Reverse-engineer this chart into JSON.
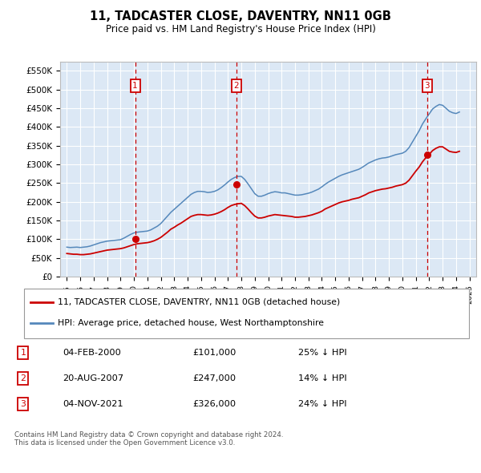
{
  "title": "11, TADCASTER CLOSE, DAVENTRY, NN11 0GB",
  "subtitle": "Price paid vs. HM Land Registry's House Price Index (HPI)",
  "ylim": [
    0,
    575000
  ],
  "yticks": [
    0,
    50000,
    100000,
    150000,
    200000,
    250000,
    300000,
    350000,
    400000,
    450000,
    500000,
    550000
  ],
  "ytick_labels": [
    "£0",
    "£50K",
    "£100K",
    "£150K",
    "£200K",
    "£250K",
    "£300K",
    "£350K",
    "£400K",
    "£450K",
    "£500K",
    "£550K"
  ],
  "background_color": "#ffffff",
  "plot_bg_color": "#dce8f5",
  "grid_color": "#ffffff",
  "red_line_color": "#cc0000",
  "blue_line_color": "#5588bb",
  "purchases": [
    {
      "date_num": 2000.09,
      "price": 101000,
      "label": "1"
    },
    {
      "date_num": 2007.64,
      "price": 247000,
      "label": "2"
    },
    {
      "date_num": 2021.84,
      "price": 326000,
      "label": "3"
    }
  ],
  "vline_color": "#cc0000",
  "purchase_marker_color": "#cc0000",
  "box_color": "#cc0000",
  "legend_items": [
    {
      "label": "11, TADCASTER CLOSE, DAVENTRY, NN11 0GB (detached house)",
      "color": "#cc0000"
    },
    {
      "label": "HPI: Average price, detached house, West Northamptonshire",
      "color": "#5588bb"
    }
  ],
  "table_rows": [
    {
      "num": "1",
      "date": "04-FEB-2000",
      "price": "£101,000",
      "hpi": "25% ↓ HPI"
    },
    {
      "num": "2",
      "date": "20-AUG-2007",
      "price": "£247,000",
      "hpi": "14% ↓ HPI"
    },
    {
      "num": "3",
      "date": "04-NOV-2021",
      "price": "£326,000",
      "hpi": "24% ↓ HPI"
    }
  ],
  "footer": "Contains HM Land Registry data © Crown copyright and database right 2024.\nThis data is licensed under the Open Government Licence v3.0.",
  "hpi_years": [
    1995.0,
    1995.25,
    1995.5,
    1995.75,
    1996.0,
    1996.25,
    1996.5,
    1996.75,
    1997.0,
    1997.25,
    1997.5,
    1997.75,
    1998.0,
    1998.25,
    1998.5,
    1998.75,
    1999.0,
    1999.25,
    1999.5,
    1999.75,
    2000.0,
    2000.25,
    2000.5,
    2000.75,
    2001.0,
    2001.25,
    2001.5,
    2001.75,
    2002.0,
    2002.25,
    2002.5,
    2002.75,
    2003.0,
    2003.25,
    2003.5,
    2003.75,
    2004.0,
    2004.25,
    2004.5,
    2004.75,
    2005.0,
    2005.25,
    2005.5,
    2005.75,
    2006.0,
    2006.25,
    2006.5,
    2006.75,
    2007.0,
    2007.25,
    2007.5,
    2007.75,
    2008.0,
    2008.25,
    2008.5,
    2008.75,
    2009.0,
    2009.25,
    2009.5,
    2009.75,
    2010.0,
    2010.25,
    2010.5,
    2010.75,
    2011.0,
    2011.25,
    2011.5,
    2011.75,
    2012.0,
    2012.25,
    2012.5,
    2012.75,
    2013.0,
    2013.25,
    2013.5,
    2013.75,
    2014.0,
    2014.25,
    2014.5,
    2014.75,
    2015.0,
    2015.25,
    2015.5,
    2015.75,
    2016.0,
    2016.25,
    2016.5,
    2016.75,
    2017.0,
    2017.25,
    2017.5,
    2017.75,
    2018.0,
    2018.25,
    2018.5,
    2018.75,
    2019.0,
    2019.25,
    2019.5,
    2019.75,
    2020.0,
    2020.25,
    2020.5,
    2020.75,
    2021.0,
    2021.25,
    2021.5,
    2021.75,
    2022.0,
    2022.25,
    2022.5,
    2022.75,
    2023.0,
    2023.25,
    2023.5,
    2023.75,
    2024.0,
    2024.25
  ],
  "hpi_blue": [
    79000,
    78000,
    78500,
    79000,
    78000,
    79000,
    80000,
    82000,
    85000,
    88000,
    91000,
    93000,
    95000,
    96000,
    97000,
    98000,
    99000,
    103000,
    108000,
    113000,
    117000,
    119000,
    120000,
    121000,
    122000,
    125000,
    130000,
    135000,
    142000,
    152000,
    162000,
    172000,
    180000,
    188000,
    196000,
    204000,
    212000,
    220000,
    225000,
    228000,
    228000,
    227000,
    225000,
    226000,
    228000,
    232000,
    238000,
    245000,
    253000,
    260000,
    265000,
    268000,
    268000,
    260000,
    248000,
    235000,
    222000,
    215000,
    215000,
    218000,
    222000,
    225000,
    227000,
    226000,
    224000,
    224000,
    222000,
    220000,
    218000,
    218000,
    219000,
    221000,
    223000,
    226000,
    230000,
    234000,
    240000,
    247000,
    253000,
    258000,
    263000,
    268000,
    272000,
    275000,
    278000,
    281000,
    284000,
    287000,
    292000,
    298000,
    304000,
    308000,
    312000,
    315000,
    317000,
    318000,
    320000,
    323000,
    326000,
    328000,
    330000,
    335000,
    345000,
    360000,
    375000,
    390000,
    408000,
    422000,
    435000,
    448000,
    455000,
    460000,
    458000,
    450000,
    442000,
    438000,
    436000,
    440000
  ],
  "hpi_red": [
    62000,
    61000,
    60000,
    60000,
    59000,
    59000,
    60000,
    61000,
    63000,
    65000,
    67000,
    69000,
    71000,
    72000,
    73000,
    74000,
    75000,
    77000,
    80000,
    83000,
    86000,
    88000,
    89000,
    90000,
    91000,
    93000,
    96000,
    100000,
    105000,
    112000,
    119000,
    127000,
    132000,
    138000,
    143000,
    149000,
    155000,
    161000,
    164000,
    166000,
    166000,
    165000,
    164000,
    165000,
    167000,
    170000,
    174000,
    179000,
    185000,
    190000,
    193000,
    195000,
    196000,
    190000,
    181000,
    171000,
    162000,
    157000,
    157000,
    159000,
    162000,
    164000,
    166000,
    165000,
    164000,
    163000,
    162000,
    161000,
    159000,
    159000,
    160000,
    161000,
    163000,
    165000,
    168000,
    171000,
    175000,
    181000,
    185000,
    189000,
    193000,
    197000,
    200000,
    202000,
    204000,
    207000,
    209000,
    211000,
    215000,
    219000,
    224000,
    227000,
    230000,
    232000,
    234000,
    235000,
    237000,
    239000,
    242000,
    244000,
    246000,
    250000,
    258000,
    270000,
    282000,
    293000,
    307000,
    318000,
    327000,
    337000,
    343000,
    347000,
    347000,
    341000,
    335000,
    333000,
    332000,
    335000
  ],
  "xlim": [
    1994.5,
    2025.5
  ],
  "xtick_years": [
    1995,
    1996,
    1997,
    1998,
    1999,
    2000,
    2001,
    2002,
    2003,
    2004,
    2005,
    2006,
    2007,
    2008,
    2009,
    2010,
    2011,
    2012,
    2013,
    2014,
    2015,
    2016,
    2017,
    2018,
    2019,
    2020,
    2021,
    2022,
    2023,
    2024,
    2025
  ]
}
